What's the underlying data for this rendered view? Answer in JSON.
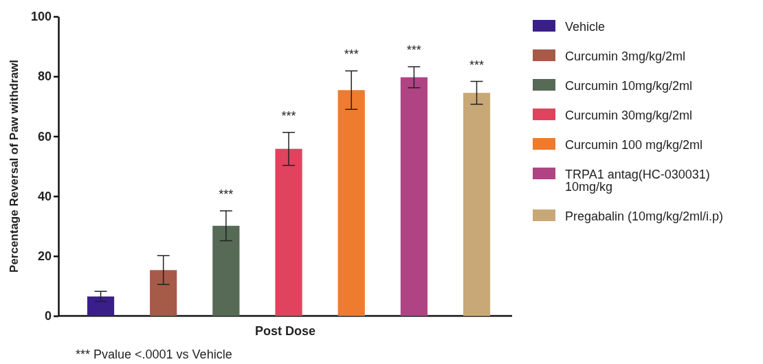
{
  "chart_data": {
    "type": "bar",
    "xlabel": "Post Dose",
    "ylabel": "Percentage Reversal of Paw withdrawl",
    "categories": [
      null,
      null,
      null,
      null,
      null,
      null,
      null
    ],
    "ylim": [
      0,
      100
    ],
    "yticks": [
      0,
      20,
      40,
      60,
      80,
      100
    ],
    "grid": false,
    "legend": "right",
    "series": [
      {
        "name": "Vehicle",
        "color": "#3a1f8a",
        "values": [
          6.5,
          null,
          null,
          null,
          null,
          null,
          null
        ],
        "errors": [
          1.7,
          null,
          null,
          null,
          null,
          null,
          null
        ]
      },
      {
        "name": "Curcumin 3mg/kg/2ml",
        "color": "#a65a48",
        "values": [
          null,
          15.3,
          null,
          null,
          null,
          null,
          null
        ],
        "errors": [
          null,
          4.8,
          null,
          null,
          null,
          null,
          null
        ]
      },
      {
        "name": "Curcumin 10mg/kg/2ml",
        "color": "#566a56",
        "values": [
          null,
          null,
          30.1,
          null,
          null,
          null,
          null
        ],
        "errors": [
          null,
          null,
          5,
          null,
          null,
          null,
          null
        ],
        "value_labels": [
          null,
          null,
          "***",
          null,
          null,
          null,
          null
        ]
      },
      {
        "name": "Curcumin 30mg/kg/2ml",
        "color": "#e0435e",
        "values": [
          null,
          null,
          null,
          55.8,
          null,
          null,
          null
        ],
        "errors": [
          null,
          null,
          null,
          5.5,
          null,
          null,
          null
        ],
        "value_labels": [
          null,
          null,
          null,
          "***",
          null,
          null,
          null
        ]
      },
      {
        "name": "Curcumin 100 mg/kg/2ml",
        "color": "#ee7b2e",
        "values": [
          null,
          null,
          null,
          null,
          75.4,
          null,
          null
        ],
        "errors": [
          null,
          null,
          null,
          null,
          6.4,
          null,
          null
        ],
        "value_labels": [
          null,
          null,
          null,
          null,
          "***",
          null,
          null
        ]
      },
      {
        "name": "TRPA1 antag(HC-030031) 10mg/kg",
        "color": "#b04384",
        "values": [
          null,
          null,
          null,
          null,
          null,
          79.7,
          null
        ],
        "errors": [
          null,
          null,
          null,
          null,
          null,
          3.5,
          null
        ],
        "value_labels": [
          null,
          null,
          null,
          null,
          null,
          "***",
          null
        ]
      },
      {
        "name": "Pregabalin (10mg/kg/2ml/i.p)",
        "color": "#c9a878",
        "values": [
          null,
          null,
          null,
          null,
          null,
          null,
          74.5
        ],
        "errors": [
          null,
          null,
          null,
          null,
          null,
          null,
          3.8
        ],
        "value_labels": [
          null,
          null,
          null,
          null,
          null,
          null,
          "***"
        ]
      }
    ],
    "annotations": [
      "*** Pvalue <.0001 vs Vehicle"
    ]
  }
}
